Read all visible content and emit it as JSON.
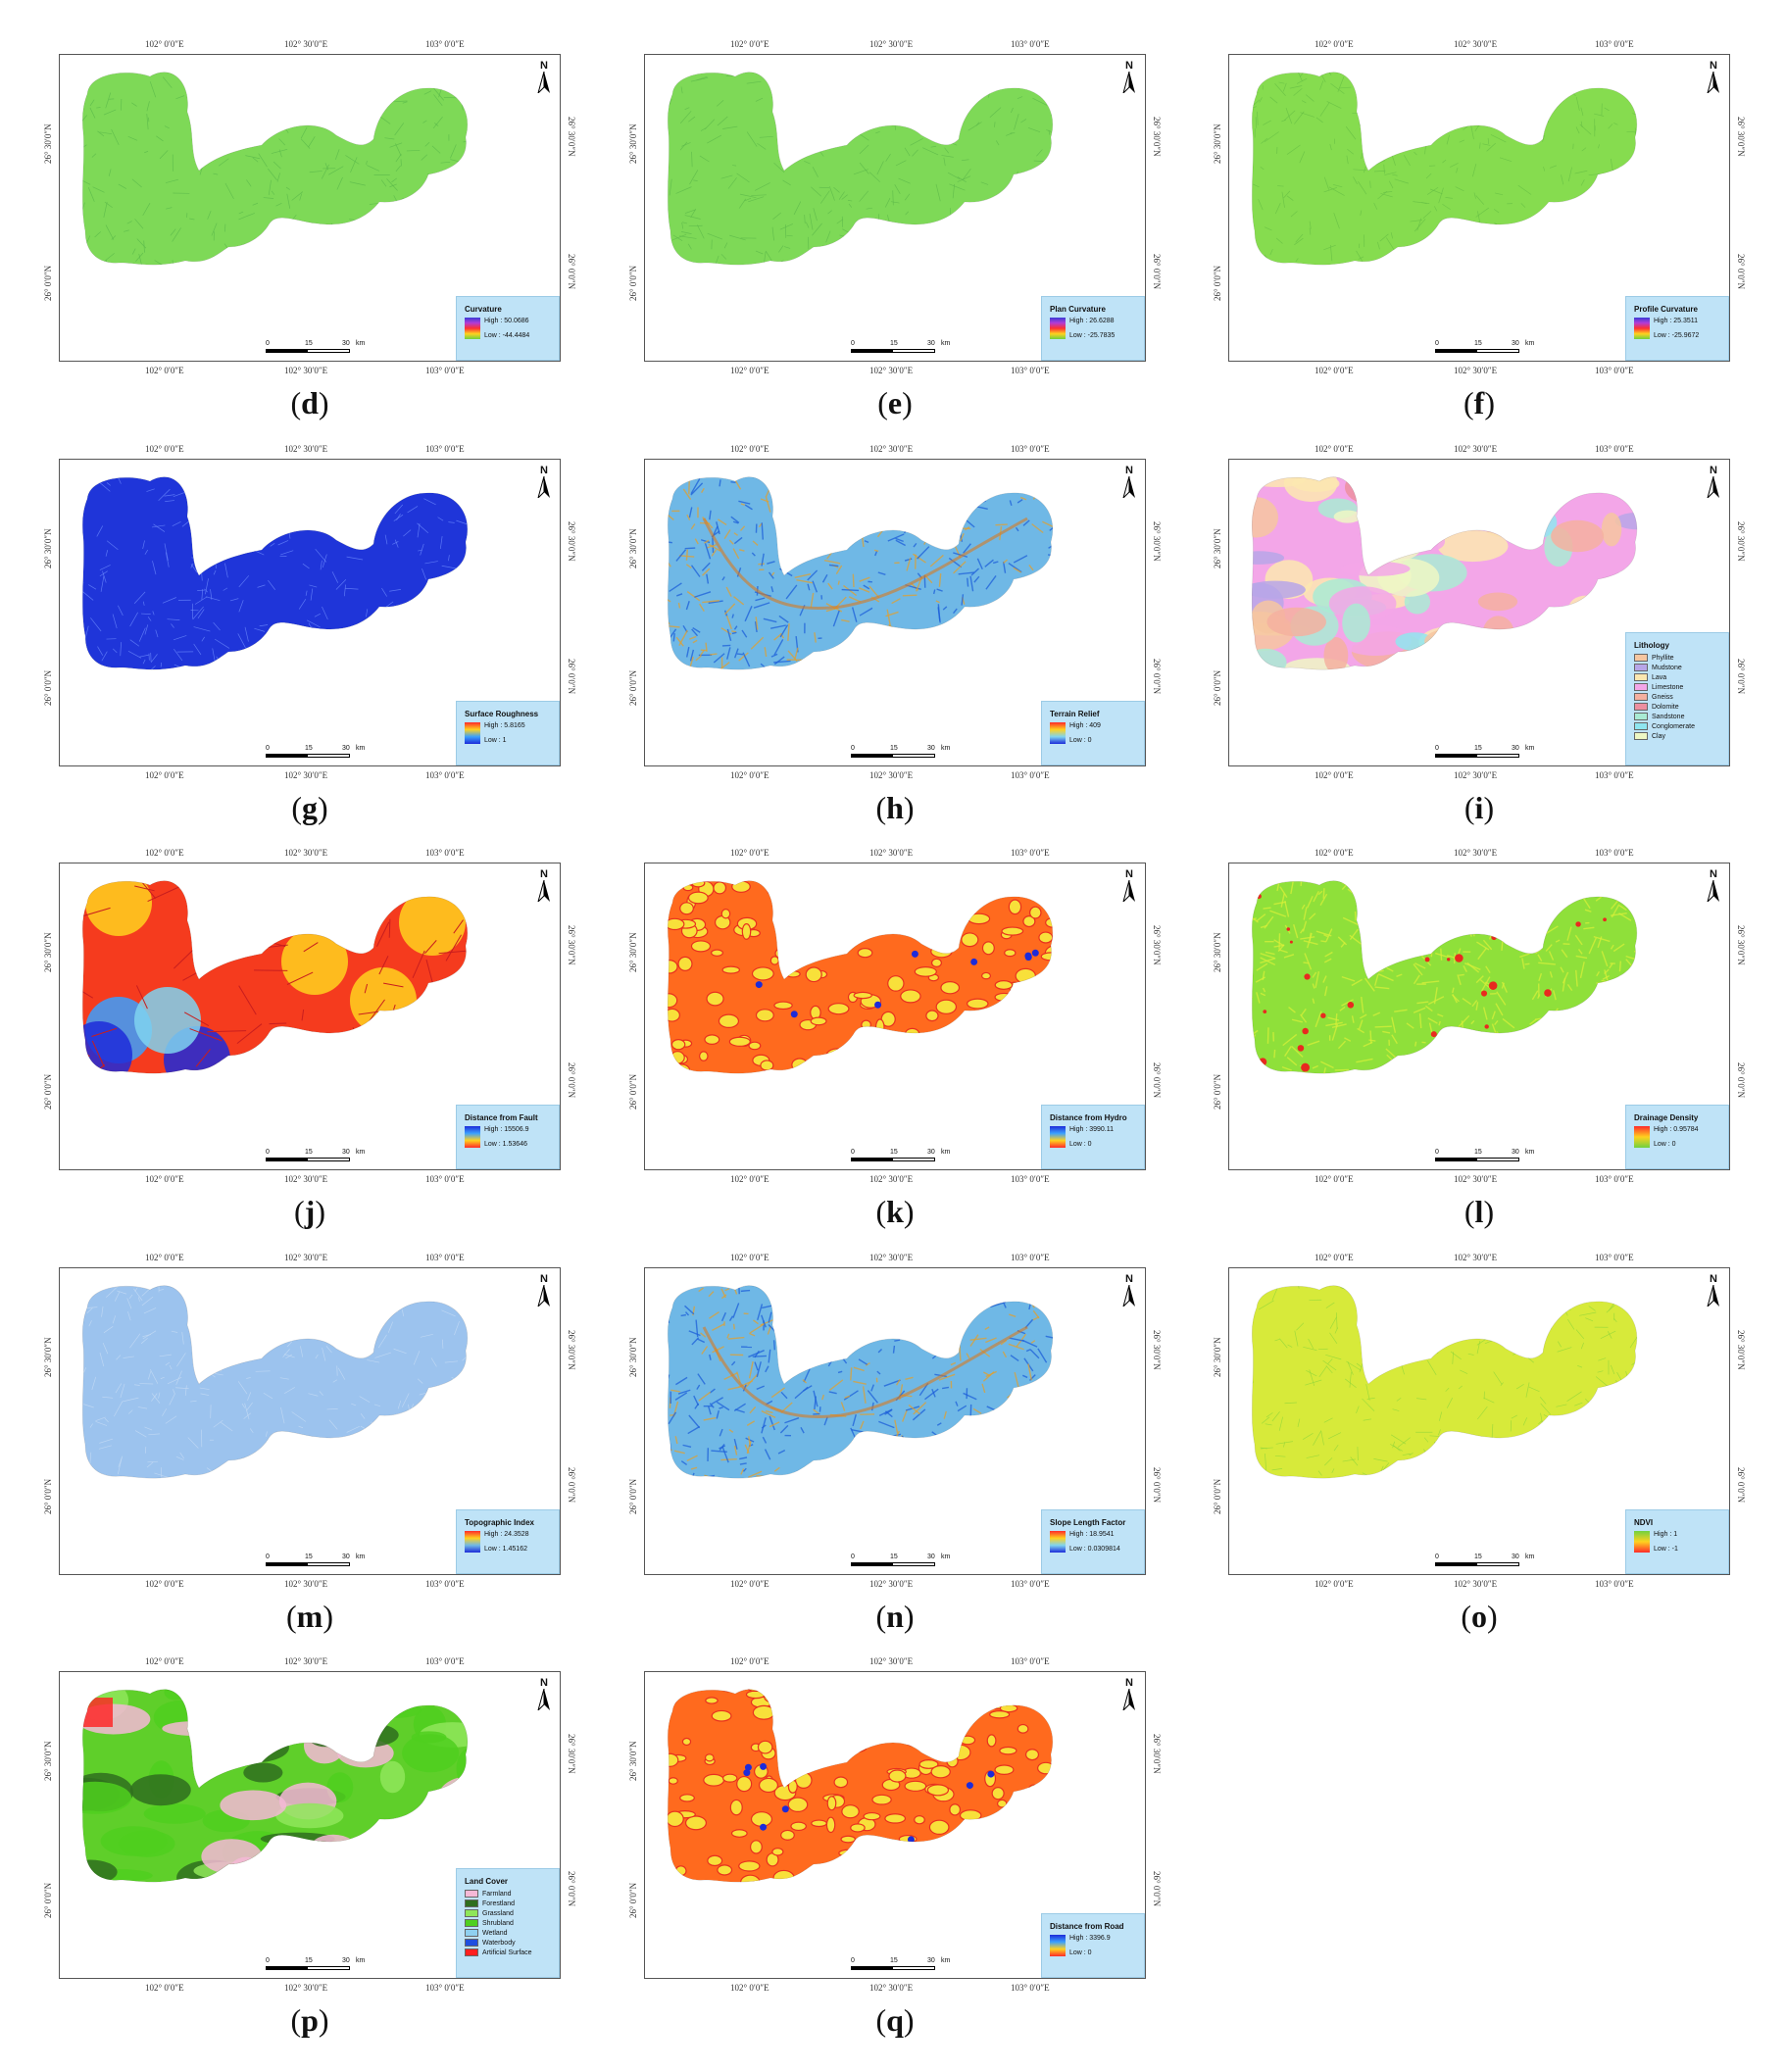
{
  "coords": {
    "top": [
      "102° 0′0″E",
      "102° 30′0″E",
      "103° 0′0″E"
    ],
    "left": [
      "26° 30′0″N",
      "26° 0′0″N"
    ]
  },
  "north_label": "N",
  "scale": {
    "labels": [
      "0",
      "15",
      "30"
    ],
    "unit": "km"
  },
  "panels": [
    {
      "letter": "d",
      "legend": {
        "title": "Curvature",
        "type": "ramp",
        "high": "High : 50.0686",
        "low": "Low : -44.4484",
        "ramp": [
          "#3b3bd6",
          "#b23bd6",
          "#ff3030",
          "#ffd21f",
          "#6fd13f"
        ]
      },
      "fill": "#7ed957",
      "fill2": "#59b84a",
      "style": "fine"
    },
    {
      "letter": "e",
      "legend": {
        "title": "Plan Curvature",
        "type": "ramp",
        "high": "High : 26.6288",
        "low": "Low : -25.7835",
        "ramp": [
          "#3b3bd6",
          "#b23bd6",
          "#ff3030",
          "#ffd21f",
          "#6fd13f"
        ]
      },
      "fill": "#7ed957",
      "fill2": "#5cb84a",
      "style": "fine"
    },
    {
      "letter": "f",
      "legend": {
        "title": "Profile Curvature",
        "type": "ramp",
        "high": "High : 25.3511",
        "low": "Low : -25.9672",
        "ramp": [
          "#3b3bd6",
          "#b23bd6",
          "#ff3030",
          "#ffd21f",
          "#6fd13f"
        ]
      },
      "fill": "#86dc4f",
      "fill2": "#66bf45",
      "style": "fine"
    },
    {
      "letter": "g",
      "legend": {
        "title": "Surface Roughness",
        "type": "ramp",
        "high": "High : 5.8165",
        "low": "Low : 1",
        "ramp": [
          "#ff2a2a",
          "#ffd21f",
          "#3aa0ff",
          "#1d2bd9"
        ]
      },
      "fill": "#1f35d9",
      "fill2": "#6f8dff",
      "style": "fine"
    },
    {
      "letter": "h",
      "legend": {
        "title": "Terrain Relief",
        "type": "ramp",
        "high": "High : 409",
        "low": "Low : 0",
        "ramp": [
          "#ff2a2a",
          "#ffd21f",
          "#7fd4f0",
          "#1d2bd9"
        ]
      },
      "fill": "#6fb8e6",
      "fill2": "#e0a030",
      "style": "mixed"
    },
    {
      "letter": "i",
      "legend": {
        "title": "Lithology",
        "type": "classes",
        "items": [
          {
            "label": "Phyllite",
            "color": "#f6c6a0"
          },
          {
            "label": "Mudstone",
            "color": "#b7a6e8"
          },
          {
            "label": "Lava",
            "color": "#fbe7b0"
          },
          {
            "label": "Limestone",
            "color": "#f3a6e8"
          },
          {
            "label": "Gneiss",
            "color": "#f4b0a0"
          },
          {
            "label": "Dolomite",
            "color": "#ec8fa0"
          },
          {
            "label": "Sandstone",
            "color": "#a9ebd4"
          },
          {
            "label": "Conglomerate",
            "color": "#8fe6f0"
          },
          {
            "label": "Clay",
            "color": "#eef7c4"
          }
        ]
      },
      "fill": "#f3a6e8",
      "fill2": "#a9ebd4",
      "style": "patches"
    },
    {
      "letter": "j",
      "legend": {
        "title": "Distance from Fault",
        "type": "ramp",
        "high": "High : 15506.9",
        "low": "Low : 1.53646",
        "ramp": [
          "#1d2bd9",
          "#3aa0ff",
          "#ffd21f",
          "#ff2a2a"
        ]
      },
      "fill": "#f53b1e",
      "fill2": "#ffd21f",
      "style": "fault"
    },
    {
      "letter": "k",
      "legend": {
        "title": "Distance from Hydro",
        "type": "ramp",
        "high": "High : 3990.11",
        "low": "Low : 0",
        "ramp": [
          "#1d2bd9",
          "#3aa0ff",
          "#ffd21f",
          "#ff2a2a"
        ]
      },
      "fill": "#ff6a1e",
      "fill2": "#f8e03a",
      "style": "network"
    },
    {
      "letter": "l",
      "legend": {
        "title": "Drainage Density",
        "type": "ramp",
        "high": "High : 0.95784",
        "low": "Low : 0",
        "ramp": [
          "#ff2a2a",
          "#ffd21f",
          "#6fd13f"
        ]
      },
      "fill": "#8fe03a",
      "fill2": "#d7f03a",
      "style": "speckle"
    },
    {
      "letter": "m",
      "legend": {
        "title": "Topographic Index",
        "type": "ramp",
        "high": "High : 24.3528",
        "low": "Low : 1.45162",
        "ramp": [
          "#ff2a2a",
          "#ffd21f",
          "#6fb8e6",
          "#1d2bd9"
        ]
      },
      "fill": "#9cc3ee",
      "fill2": "#c8ddf5",
      "style": "fine"
    },
    {
      "letter": "n",
      "legend": {
        "title": "Slope Length Factor",
        "type": "ramp",
        "high": "High : 18.9541",
        "low": "Low : 0.0309814",
        "ramp": [
          "#ff2a2a",
          "#ffd21f",
          "#7fd4f0",
          "#1d2bd9"
        ]
      },
      "fill": "#6fb8e6",
      "fill2": "#e0a030",
      "style": "mixed"
    },
    {
      "letter": "o",
      "legend": {
        "title": "NDVI",
        "type": "ramp",
        "high": "High : 1",
        "low": "Low : -1",
        "ramp": [
          "#6fd13f",
          "#ffd21f",
          "#ff2a2a"
        ]
      },
      "fill": "#d7ea3a",
      "fill2": "#8fd63a",
      "style": "fine"
    },
    {
      "letter": "p",
      "legend": {
        "title": "Land Cover",
        "type": "classes",
        "items": [
          {
            "label": "Farmland",
            "color": "#f5b8d6"
          },
          {
            "label": "Forestland",
            "color": "#2f6e1e"
          },
          {
            "label": "Grassland",
            "color": "#8fe65a"
          },
          {
            "label": "Shrubland",
            "color": "#4fcf1f"
          },
          {
            "label": "Wetland",
            "color": "#8fd0f0"
          },
          {
            "label": "Waterbody",
            "color": "#1f4fe0"
          },
          {
            "label": "Artificial Surface",
            "color": "#ff1f1f"
          }
        ]
      },
      "fill": "#5fcf2a",
      "fill2": "#2f6e1e",
      "style": "patches"
    },
    {
      "letter": "q",
      "legend": {
        "title": "Distance from Road",
        "type": "ramp",
        "high": "High : 3396.9",
        "low": "Low : 0",
        "ramp": [
          "#1d2bd9",
          "#3aa0ff",
          "#ffd21f",
          "#ff2a2a"
        ]
      },
      "fill": "#ff6a1e",
      "fill2": "#f8e03a",
      "style": "network"
    }
  ]
}
